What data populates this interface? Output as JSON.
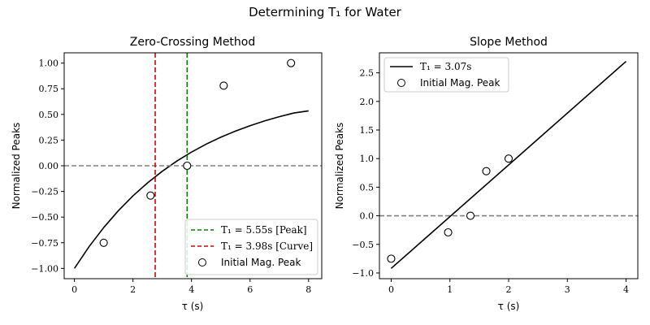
{
  "suptitle": "Determining T₁ for Water",
  "chart_data": [
    {
      "type": "line",
      "title": "Zero-Crossing Method",
      "xlabel": "τ (s)",
      "ylabel": "Normalized Peaks",
      "xlim": [
        -0.35,
        8.45
      ],
      "ylim": [
        -1.1,
        1.1
      ],
      "xticks": [
        0,
        2,
        4,
        6,
        8
      ],
      "xtick_labels": [
        "0",
        "2",
        "4",
        "6",
        "8"
      ],
      "yticks": [
        -1.0,
        -0.75,
        -0.5,
        -0.25,
        0.0,
        0.25,
        0.5,
        0.75,
        1.0
      ],
      "ytick_labels": [
        "−1.00",
        "−0.75",
        "−0.50",
        "−0.25",
        "0.00",
        "0.25",
        "0.50",
        "0.75",
        "1.00"
      ],
      "grid": false,
      "legend_position": "lower-right",
      "curve": {
        "x": [
          0,
          0.5,
          1,
          1.5,
          2,
          2.5,
          3,
          3.5,
          4,
          4.5,
          5,
          5.5,
          6,
          6.5,
          7,
          7.5,
          8
        ],
        "y": [
          -1.0,
          -0.788,
          -0.602,
          -0.438,
          -0.293,
          -0.166,
          -0.054,
          0.046,
          0.133,
          0.21,
          0.278,
          0.337,
          0.39,
          0.437,
          0.478,
          0.514,
          0.535
        ]
      },
      "zero_line": {
        "y": 0.0,
        "color": "#808080"
      },
      "vlines": [
        {
          "name": "T₁ = 5.55s [Peak]",
          "x": 3.85,
          "color": "#008000"
        },
        {
          "name": "T₁ = 3.98s [Curve]",
          "x": 2.76,
          "color": "#e00000"
        }
      ],
      "points": {
        "name": "Initial Mag. Peak",
        "x": [
          1.0,
          2.6,
          3.85,
          5.1,
          7.4
        ],
        "y": [
          -0.75,
          -0.29,
          0.0,
          0.78,
          1.0
        ]
      }
    },
    {
      "type": "line",
      "title": "Slope Method",
      "xlabel": "τ (s)",
      "ylabel": "Normalized Peaks",
      "xlim": [
        -0.2,
        4.2
      ],
      "ylim": [
        -1.1,
        2.85
      ],
      "xticks": [
        0,
        1,
        2,
        3,
        4
      ],
      "xtick_labels": [
        "0",
        "1",
        "2",
        "3",
        "4"
      ],
      "yticks": [
        -1.0,
        -0.5,
        0.0,
        0.5,
        1.0,
        1.5,
        2.0,
        2.5
      ],
      "ytick_labels": [
        "−1.0",
        "−0.5",
        "0.0",
        "0.5",
        "1.0",
        "1.5",
        "2.0",
        "2.5"
      ],
      "grid": false,
      "legend_position": "top-left",
      "fit_line": {
        "name": "T₁ = 3.07s",
        "x": [
          0.0,
          4.0
        ],
        "y": [
          -0.92,
          2.7
        ]
      },
      "zero_line": {
        "y": 0.0,
        "color": "#808080"
      },
      "points": {
        "name": "Initial Mag. Peak",
        "x": [
          0.0,
          0.97,
          1.35,
          1.62,
          2.0
        ],
        "y": [
          -0.75,
          -0.29,
          0.0,
          0.78,
          1.0
        ]
      }
    }
  ]
}
